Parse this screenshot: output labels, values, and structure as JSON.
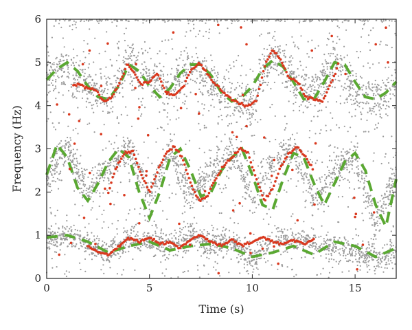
{
  "chart_data": {
    "type": "scatter",
    "title": "",
    "xlabel": "Time (s)",
    "ylabel": "Frequency (Hz)",
    "xlim": [
      0,
      17
    ],
    "ylim": [
      0,
      6
    ],
    "xticks": [
      0,
      5,
      10,
      15
    ],
    "yticks": [
      0,
      1,
      2,
      3,
      4,
      5,
      6
    ],
    "grid": false,
    "legend": "none",
    "colors": {
      "noise": "#9a9a9a",
      "ridge": "#d9381e",
      "model": "#5aa832",
      "axis": "#222222"
    },
    "series": [
      {
        "kind": "scatter-cloud",
        "color": "#9a9a9a",
        "bands": [
          {
            "x": [
              0,
              1,
              2,
              3,
              4,
              5,
              6,
              7,
              8,
              9,
              10,
              11,
              12,
              13,
              14,
              15,
              16,
              17
            ],
            "y": [
              4.7,
              4.8,
              4.4,
              4.2,
              5.0,
              4.6,
              4.3,
              4.9,
              4.5,
              4.1,
              4.0,
              5.3,
              4.6,
              4.2,
              5.0,
              4.3,
              4.1,
              4.5
            ],
            "spread": 0.25
          },
          {
            "x": [
              0,
              1,
              2,
              3,
              4,
              5,
              6,
              7,
              8,
              9,
              10,
              11,
              12,
              13,
              14,
              15,
              16,
              17
            ],
            "y": [
              2.4,
              3.0,
              2.0,
              2.6,
              3.0,
              1.8,
              3.0,
              1.9,
              2.5,
              3.0,
              1.8,
              2.7,
              3.0,
              1.8,
              2.5,
              2.8,
              1.2,
              2.5
            ],
            "spread": 0.2
          },
          {
            "x": [
              0,
              1,
              2,
              3,
              4,
              5,
              6,
              7,
              8,
              9,
              10,
              11,
              12,
              13,
              14,
              15,
              16,
              17
            ],
            "y": [
              0.9,
              1.0,
              0.8,
              0.6,
              0.9,
              0.85,
              0.75,
              0.95,
              0.8,
              0.8,
              0.45,
              0.9,
              0.9,
              0.8,
              0.7,
              0.65,
              0.45,
              0.6
            ],
            "spread": 0.15
          }
        ]
      },
      {
        "kind": "ridge",
        "color": "#d9381e",
        "points": [
          {
            "x": [
              1.3,
              1.6,
              2.0,
              2.4,
              2.8,
              3.2,
              3.6,
              3.9,
              4.2,
              4.6,
              5.0,
              5.4,
              5.8,
              6.2,
              6.6,
              7.0,
              7.4,
              7.8,
              8.2,
              8.6,
              9.0,
              9.4,
              9.8,
              10.2,
              10.6,
              11.0,
              11.4,
              11.8,
              12.2,
              12.6,
              13.0,
              13.4,
              14.0,
              14.2
            ],
            "y": [
              4.45,
              4.5,
              4.4,
              4.35,
              4.1,
              4.2,
              4.6,
              4.95,
              4.8,
              4.5,
              4.55,
              4.75,
              4.3,
              4.25,
              4.4,
              4.8,
              5.0,
              4.75,
              4.5,
              4.3,
              4.15,
              4.05,
              4.0,
              4.1,
              4.9,
              5.3,
              5.05,
              4.65,
              4.55,
              4.2,
              4.15,
              4.1,
              4.7,
              5.0
            ]
          },
          {
            "x": [
              3.0,
              3.4,
              3.8,
              4.2,
              4.6,
              5.0,
              5.4,
              5.8,
              6.2,
              6.6,
              7.0,
              7.4,
              7.8,
              8.2,
              8.6,
              9.0,
              9.4,
              9.8,
              10.2,
              10.6,
              11.0,
              11.4,
              11.8,
              12.2,
              12.6,
              13.0
            ],
            "y": [
              2.0,
              2.6,
              2.9,
              2.95,
              2.4,
              2.0,
              2.5,
              2.9,
              3.05,
              2.8,
              2.2,
              1.8,
              1.9,
              2.3,
              2.6,
              2.8,
              3.0,
              2.9,
              2.3,
              1.8,
              2.1,
              2.6,
              2.9,
              3.05,
              2.8,
              2.5
            ]
          },
          {
            "x": [
              2.0,
              2.5,
              3.0,
              3.5,
              4.0,
              4.5,
              5.0,
              5.5,
              6.0,
              6.5,
              7.0,
              7.5,
              8.0,
              8.5,
              9.0,
              9.5,
              10.0,
              10.5,
              11.0,
              11.5,
              12.0,
              12.5,
              13.0
            ],
            "y": [
              0.75,
              0.6,
              0.55,
              0.75,
              0.95,
              0.85,
              0.95,
              0.8,
              0.85,
              0.7,
              0.9,
              1.0,
              0.85,
              0.75,
              0.9,
              0.75,
              0.85,
              0.95,
              0.85,
              0.8,
              0.9,
              0.8,
              0.9
            ]
          }
        ]
      },
      {
        "kind": "model-dashed",
        "color": "#5aa832",
        "lines": [
          {
            "x": [
              0,
              0.5,
              1.0,
              1.5,
              2.0,
              2.5,
              3.0,
              3.5,
              4.0,
              4.5,
              5.0,
              5.5,
              6.0,
              6.5,
              7.0,
              7.5,
              8.0,
              8.5,
              9.0,
              9.5,
              10.0,
              10.5,
              11.0,
              11.5,
              12.0,
              12.5,
              13.0,
              13.5,
              14.0,
              14.5,
              15.0,
              15.5,
              16.0,
              16.5,
              17.0
            ],
            "y": [
              4.6,
              4.85,
              5.0,
              4.8,
              4.45,
              4.2,
              4.15,
              4.45,
              4.95,
              4.8,
              4.45,
              4.2,
              4.4,
              4.75,
              4.95,
              4.95,
              4.7,
              4.3,
              4.1,
              4.2,
              4.45,
              4.85,
              5.05,
              4.9,
              4.55,
              4.15,
              4.15,
              4.55,
              5.0,
              4.95,
              4.55,
              4.2,
              4.15,
              4.3,
              4.55
            ]
          },
          {
            "x": [
              0,
              0.5,
              1.0,
              1.5,
              2.0,
              2.5,
              3.0,
              3.5,
              4.0,
              4.5,
              5.0,
              5.5,
              6.0,
              6.5,
              7.0,
              7.5,
              8.0,
              8.5,
              9.0,
              9.5,
              10.0,
              10.5,
              11.0,
              11.5,
              12.0,
              12.5,
              13.0,
              13.5,
              14.0,
              14.5,
              15.0,
              15.5,
              16.0,
              16.5,
              17.0
            ],
            "y": [
              2.4,
              3.1,
              2.8,
              2.1,
              1.8,
              2.2,
              2.7,
              3.0,
              2.8,
              2.0,
              1.4,
              2.0,
              2.8,
              3.0,
              2.5,
              1.9,
              2.0,
              2.5,
              2.8,
              3.0,
              2.4,
              1.7,
              1.6,
              2.3,
              2.9,
              2.8,
              2.2,
              1.7,
              2.2,
              2.7,
              2.9,
              2.5,
              1.7,
              1.2,
              2.3
            ]
          },
          {
            "x": [
              0,
              1.0,
              2.0,
              3.0,
              4.0,
              5.0,
              6.0,
              7.0,
              8.0,
              9.0,
              10.0,
              11.0,
              12.0,
              13.0,
              14.0,
              15.0,
              16.0,
              17.0
            ],
            "y": [
              0.95,
              1.0,
              0.85,
              0.6,
              0.75,
              0.85,
              0.65,
              0.75,
              0.8,
              0.7,
              0.5,
              0.6,
              0.75,
              0.55,
              0.85,
              0.75,
              0.5,
              0.7
            ]
          }
        ]
      }
    ]
  }
}
